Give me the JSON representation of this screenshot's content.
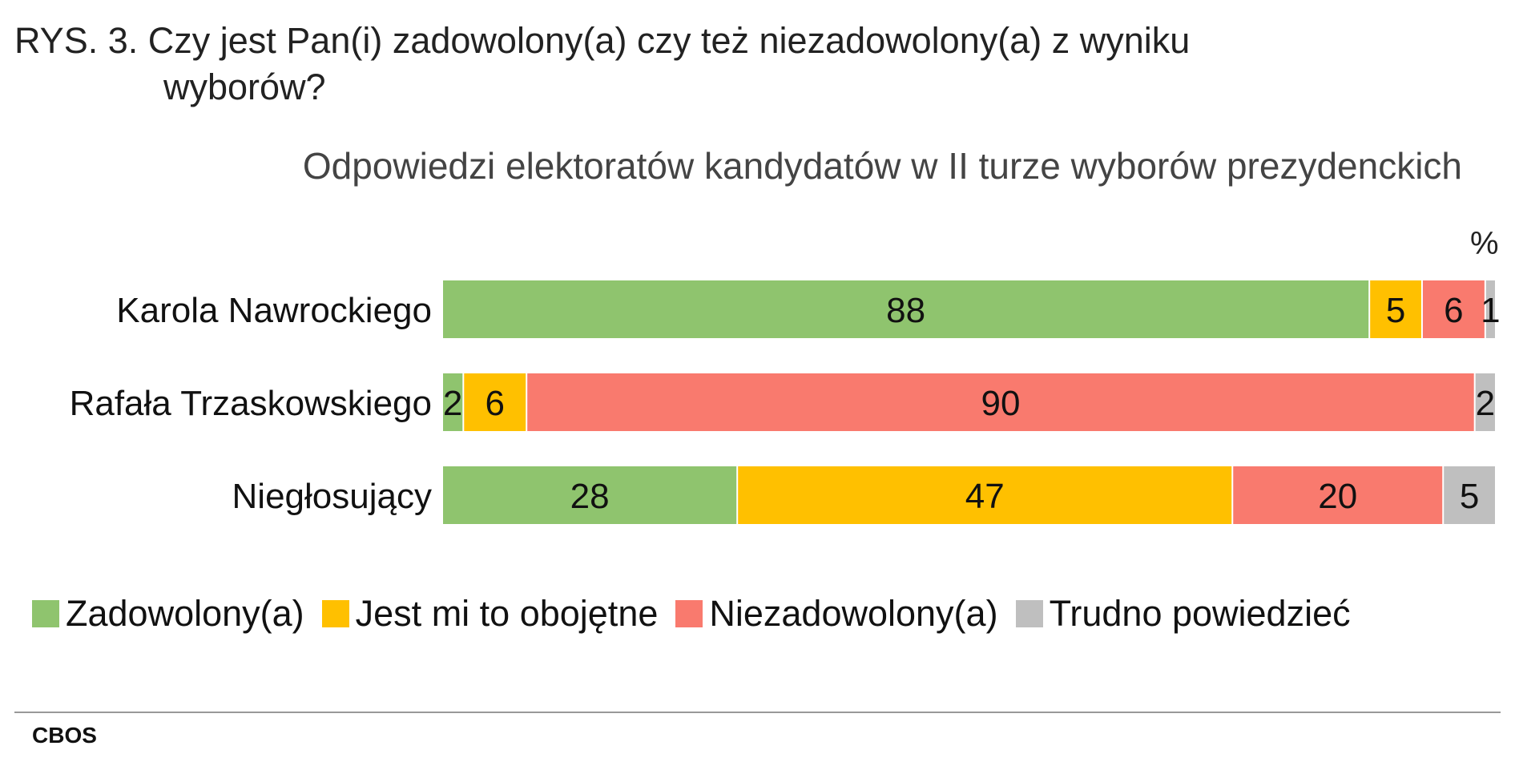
{
  "title": {
    "prefix": "RYS. 3.",
    "line1": "Czy jest Pan(i) zadowolony(a) czy też niezadowolony(a) z wyniku",
    "line2": "wyborów?"
  },
  "subtitle": "Odpowiedzi elektoratów kandydatów w II turze wyborów prezydenckich",
  "unit_label": "%",
  "source": "CBOS",
  "colors": {
    "zadowolony": "#8fc46e",
    "obojetne": "#ffc000",
    "niezadowolony": "#f97a6e",
    "trudno": "#bfbfbf"
  },
  "chart_data": {
    "type": "bar",
    "orientation": "horizontal",
    "stacked": true,
    "categories": [
      "Karola Nawrockiego",
      "Rafała Trzaskowskiego",
      "Niegłosujący"
    ],
    "series": [
      {
        "name": "Zadowolony(a)",
        "key": "zadowolony",
        "values": [
          88,
          2,
          28
        ]
      },
      {
        "name": "Jest mi to obojętne",
        "key": "obojetne",
        "values": [
          5,
          6,
          47
        ]
      },
      {
        "name": "Niezadowolony(a)",
        "key": "niezadowolony",
        "values": [
          6,
          90,
          20
        ]
      },
      {
        "name": "Trudno powiedzieć",
        "key": "trudno",
        "values": [
          1,
          2,
          5
        ]
      }
    ],
    "xlim": [
      0,
      100
    ],
    "unit": "%",
    "grid": false,
    "legend": "bottom"
  }
}
